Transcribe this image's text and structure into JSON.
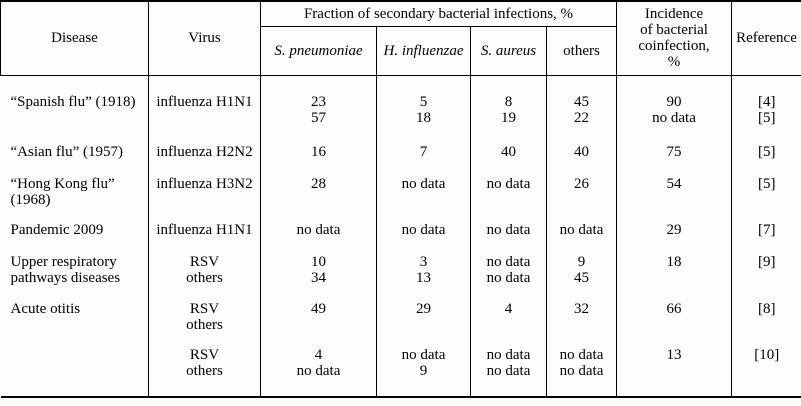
{
  "table": {
    "header": {
      "disease": "Disease",
      "virus": "Virus",
      "fraction_group": "Fraction of secondary bacterial infections, %",
      "sub": [
        "S. pneumoniae",
        "H. influenzae",
        "S. aureus",
        "others"
      ],
      "incidence_lines": [
        "Incidence",
        "of bacterial",
        "coinfection,",
        "%"
      ],
      "reference": "Reference"
    },
    "rows": [
      {
        "disease": [
          "“Spanish flu” (1918)"
        ],
        "virus": [
          "influenza H1N1"
        ],
        "sp": [
          "23",
          "57"
        ],
        "hi": [
          "5",
          "18"
        ],
        "sa": [
          "8",
          "19"
        ],
        "others": [
          "45",
          "22"
        ],
        "incidence": [
          "90",
          "no data"
        ],
        "ref": [
          "[4]",
          "[5]"
        ]
      },
      {
        "disease": [
          "“Asian flu” (1957)"
        ],
        "virus": [
          "influenza H2N2"
        ],
        "sp": [
          "16"
        ],
        "hi": [
          "7"
        ],
        "sa": [
          "40"
        ],
        "others": [
          "40"
        ],
        "incidence": [
          "75"
        ],
        "ref": [
          "[5]"
        ]
      },
      {
        "disease": [
          "“Hong Kong flu”",
          "(1968)"
        ],
        "virus": [
          "influenza H3N2"
        ],
        "sp": [
          "28"
        ],
        "hi": [
          "no data"
        ],
        "sa": [
          "no data"
        ],
        "others": [
          "26"
        ],
        "incidence": [
          "54"
        ],
        "ref": [
          "[5]"
        ]
      },
      {
        "disease": [
          "Pandemic 2009"
        ],
        "virus": [
          "influenza H1N1"
        ],
        "sp": [
          "no data"
        ],
        "hi": [
          "no data"
        ],
        "sa": [
          "no data"
        ],
        "others": [
          "no data"
        ],
        "incidence": [
          "29"
        ],
        "ref": [
          "[7]"
        ]
      },
      {
        "disease": [
          "Upper respiratory",
          "pathways diseases"
        ],
        "virus": [
          "RSV",
          "others"
        ],
        "sp": [
          "10",
          "34"
        ],
        "hi": [
          "3",
          "13"
        ],
        "sa": [
          "no data",
          "no data"
        ],
        "others": [
          "9",
          "45"
        ],
        "incidence": [
          "18"
        ],
        "ref": [
          "[9]"
        ]
      },
      {
        "disease": [
          "Acute otitis"
        ],
        "virus": [
          "RSV",
          "others"
        ],
        "sp": [
          "49"
        ],
        "hi": [
          "29"
        ],
        "sa": [
          "4"
        ],
        "others": [
          "32"
        ],
        "incidence": [
          "66"
        ],
        "ref": [
          "[8]"
        ]
      },
      {
        "disease": [],
        "virus": [
          "RSV",
          "others"
        ],
        "sp": [
          "4",
          "no data"
        ],
        "hi": [
          "no data",
          "9"
        ],
        "sa": [
          "no data",
          "no data"
        ],
        "others": [
          "no data",
          "no data"
        ],
        "incidence": [
          "13"
        ],
        "ref": [
          "[10]"
        ]
      }
    ]
  }
}
